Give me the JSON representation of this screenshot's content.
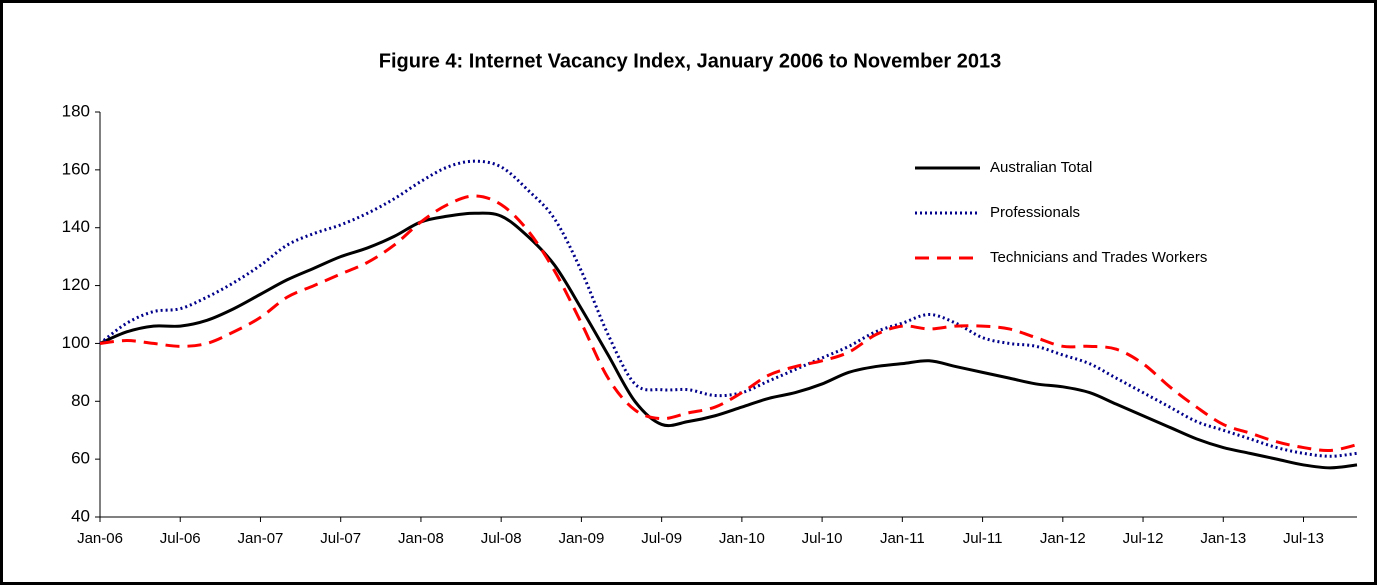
{
  "chart_data": {
    "type": "line",
    "title": "Figure 4: Internet Vacancy Index, January 2006 to November 2013",
    "categories": [
      "Jan-06",
      null,
      null,
      "Jul-06",
      null,
      null,
      "Jan-07",
      null,
      null,
      "Jul-07",
      null,
      null,
      "Jan-08",
      null,
      null,
      "Jul-08",
      null,
      null,
      "Jan-09",
      null,
      null,
      "Jul-09",
      null,
      null,
      "Jan-10",
      null,
      null,
      "Jul-10",
      null,
      null,
      "Jan-11",
      null,
      null,
      "Jul-11",
      null,
      null,
      "Jan-12",
      null,
      null,
      "Jul-12",
      null,
      null,
      "Jan-13",
      null,
      null,
      "Jul-13",
      null,
      null
    ],
    "series": [
      {
        "name": "Australian Total",
        "color": "#000000",
        "dash": "solid",
        "values": [
          100,
          104,
          106,
          106,
          108,
          112,
          117,
          122,
          126,
          130,
          133,
          137,
          142,
          144,
          145,
          144,
          137,
          127,
          112,
          96,
          80,
          72,
          73,
          75,
          78,
          81,
          83,
          86,
          90,
          92,
          93,
          94,
          92,
          90,
          88,
          86,
          85,
          83,
          79,
          75,
          71,
          67,
          64,
          62,
          60,
          58,
          57,
          58
        ]
      },
      {
        "name": "Professionals",
        "color": "#00008b",
        "dash": "dotted",
        "values": [
          100,
          107,
          111,
          112,
          116,
          121,
          127,
          134,
          138,
          141,
          145,
          150,
          156,
          161,
          163,
          161,
          153,
          143,
          125,
          103,
          86,
          84,
          84,
          82,
          83,
          87,
          91,
          95,
          99,
          104,
          107,
          110,
          107,
          102,
          100,
          99,
          96,
          93,
          88,
          83,
          78,
          73,
          70,
          67,
          64,
          62,
          61,
          62
        ]
      },
      {
        "name": "Technicians and Trades Workers",
        "color": "#ff0000",
        "dash": "dashed",
        "values": [
          100,
          101,
          100,
          99,
          100,
          104,
          109,
          116,
          120,
          124,
          128,
          134,
          142,
          148,
          151,
          148,
          139,
          125,
          107,
          88,
          77,
          74,
          76,
          78,
          83,
          89,
          92,
          94,
          97,
          103,
          106,
          105,
          106,
          106,
          105,
          102,
          99,
          99,
          98,
          93,
          85,
          78,
          72,
          69,
          66,
          64,
          63,
          65
        ]
      }
    ],
    "ylim": [
      40,
      180
    ],
    "yticks": [
      40,
      60,
      80,
      100,
      120,
      140,
      160,
      180
    ],
    "grid": false,
    "legend": "upper right"
  }
}
